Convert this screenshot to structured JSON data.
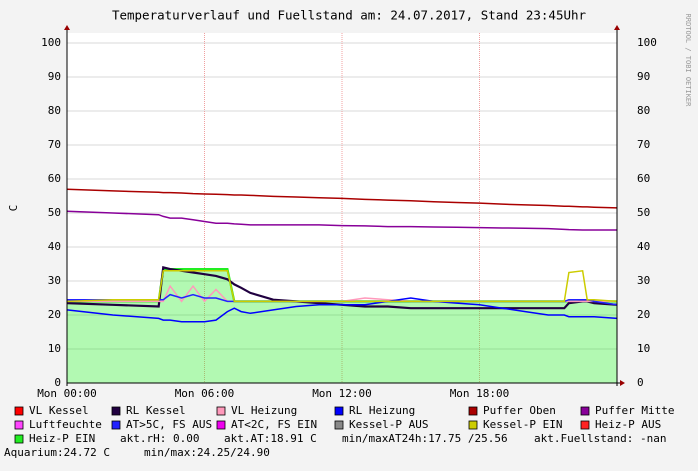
{
  "chart_data": {
    "type": "line",
    "title": "Temperaturverlauf und Fuellstand am: 24.07.2017, Stand 23:45Uhr",
    "y_label": "C",
    "watermark": "RRDTOOL / TOBI OETIKER",
    "x": [
      0,
      2,
      4,
      4.2,
      4.5,
      5,
      5.5,
      6,
      6.5,
      7,
      7.3,
      7.6,
      8,
      9,
      10,
      11,
      12,
      13,
      14,
      15,
      16,
      17,
      18,
      19,
      20,
      21,
      21.7,
      21.9,
      22.5,
      22.7,
      23,
      24
    ],
    "xlim": [
      0,
      24
    ],
    "xticks": [
      {
        "value": 0,
        "label": "Mon 00:00"
      },
      {
        "value": 6,
        "label": "Mon 06:00"
      },
      {
        "value": 12,
        "label": "Mon 12:00"
      },
      {
        "value": 18,
        "label": "Mon 18:00"
      }
    ],
    "ylim": [
      0,
      100
    ],
    "yticks": [
      0,
      10,
      20,
      30,
      40,
      50,
      60,
      70,
      80,
      90,
      100
    ],
    "grid": true,
    "series": [
      {
        "name": "VL Kessel",
        "color": "#ff0000"
      },
      {
        "name": "RL Kessel",
        "color": "#200040",
        "values": [
          23.5,
          23,
          22.5,
          34,
          33.5,
          33,
          32.5,
          32,
          31.5,
          30.5,
          29,
          28,
          26.5,
          24.5,
          24,
          23.5,
          23,
          22.5,
          22.5,
          22,
          22,
          22,
          22,
          22,
          22,
          22,
          22,
          23.5,
          24,
          24,
          23.5,
          23
        ]
      },
      {
        "name": "VL Heizung",
        "color": "#ff99bb",
        "values": [
          24,
          24,
          24,
          24,
          28.5,
          24,
          28.5,
          24,
          27.5,
          24,
          24,
          24,
          24,
          24,
          24,
          24,
          24,
          25,
          24.5,
          24,
          24,
          24,
          24,
          24,
          24,
          24,
          24,
          24,
          24,
          24,
          24,
          24
        ]
      },
      {
        "name": "RL Heizung",
        "color": "#0000ff",
        "values": [
          21.5,
          20,
          19,
          18.5,
          18.5,
          18,
          18,
          18,
          18.5,
          21,
          22,
          21,
          20.5,
          21.5,
          22.5,
          23,
          23,
          23,
          24,
          25,
          24,
          23.5,
          23,
          22,
          21,
          20,
          20,
          19.5,
          19.5,
          19.5,
          19.5,
          19
        ]
      },
      {
        "name": "Puffer Oben",
        "color": "#aa0000",
        "values": [
          57,
          56.5,
          56.1,
          56,
          56,
          55.9,
          55.7,
          55.6,
          55.5,
          55.4,
          55.3,
          55.3,
          55.2,
          54.9,
          54.7,
          54.5,
          54.3,
          54,
          53.8,
          53.6,
          53.3,
          53.1,
          52.9,
          52.6,
          52.4,
          52.2,
          52,
          52,
          51.8,
          51.8,
          51.7,
          51.5
        ]
      },
      {
        "name": "Puffer Mitte",
        "color": "#880099",
        "values": [
          50.5,
          50,
          49.5,
          49,
          48.5,
          48.5,
          48,
          47.5,
          47,
          47,
          46.8,
          46.7,
          46.5,
          46.5,
          46.5,
          46.5,
          46.3,
          46.2,
          46,
          46,
          45.9,
          45.8,
          45.7,
          45.6,
          45.5,
          45.4,
          45.2,
          45.1,
          45,
          45,
          45,
          45
        ]
      },
      {
        "name": "Luftfeuchte",
        "color": "#ff44ff"
      },
      {
        "name": "AT>5C, FS AUS",
        "color": "#2222ff",
        "values": [
          24.5,
          24.5,
          24.5,
          24.5,
          26,
          25,
          26,
          25,
          25,
          24,
          24,
          24,
          24,
          24,
          24,
          24,
          24,
          24,
          24,
          24,
          24,
          24,
          24,
          24,
          24,
          24,
          24,
          24.5,
          24.5,
          24.5,
          24,
          23
        ]
      },
      {
        "name": "AT<2C, FS EIN",
        "color": "#ee00ee"
      },
      {
        "name": "Kessel-P AUS",
        "color": "#888888"
      },
      {
        "name": "Kessel-P EIN",
        "color": "#cccc00",
        "values": [
          24,
          24.5,
          24.5,
          33,
          33,
          33,
          33,
          33,
          33,
          33,
          24,
          24,
          24,
          24,
          24,
          24,
          24,
          24,
          24,
          24,
          24,
          24,
          24,
          24,
          24,
          24,
          24,
          32.5,
          33,
          24.5,
          24.5,
          24
        ]
      },
      {
        "name": "Heiz-P AUS",
        "color": "#ff2222"
      },
      {
        "name": "Heiz-P EIN",
        "color": "#22ee22",
        "area": true,
        "values": [
          24,
          24,
          24,
          33.5,
          33.5,
          33.5,
          33.5,
          33.5,
          33.5,
          33.5,
          24,
          24,
          24,
          24,
          24,
          24,
          24,
          24,
          24,
          24,
          24,
          24,
          24,
          24,
          24,
          24,
          24,
          24,
          24,
          24,
          24,
          24
        ]
      }
    ],
    "legend_texts": [
      "akt.rH: 0.00",
      "akt.AT:18.91 C",
      "min/maxAT24h:17.75 /25.56",
      "akt.Fuellstand: -nan",
      "Aquarium:24.72 C",
      "min/max:24.25/24.90"
    ]
  }
}
